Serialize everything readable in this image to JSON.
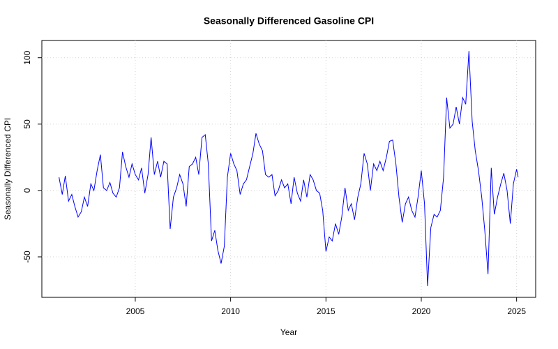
{
  "chart_data": {
    "type": "line",
    "title": "Seasonally Differenced Gasoline CPI",
    "x_label": "Year",
    "y_label": "Seasonally Differenced CPI",
    "xlim": [
      2000.1,
      2026
    ],
    "ylim": [
      -80.5,
      113
    ],
    "xticks": [
      2005,
      2010,
      2015,
      2020,
      2025
    ],
    "yticks": [
      -50,
      0,
      50,
      100
    ],
    "grid": true,
    "series": [
      {
        "color": "#0000ff",
        "x": [
          2001,
          2001.17,
          2001.33,
          2001.5,
          2001.67,
          2001.83,
          2002,
          2002.17,
          2002.33,
          2002.5,
          2002.67,
          2002.83,
          2003,
          2003.17,
          2003.33,
          2003.5,
          2003.67,
          2003.83,
          2004,
          2004.17,
          2004.33,
          2004.5,
          2004.67,
          2004.83,
          2005,
          2005.17,
          2005.33,
          2005.5,
          2005.67,
          2005.83,
          2006,
          2006.17,
          2006.33,
          2006.5,
          2006.67,
          2006.83,
          2007,
          2007.17,
          2007.33,
          2007.5,
          2007.67,
          2007.83,
          2008,
          2008.17,
          2008.33,
          2008.5,
          2008.67,
          2008.83,
          2009,
          2009.17,
          2009.33,
          2009.5,
          2009.67,
          2009.83,
          2010,
          2010.17,
          2010.33,
          2010.5,
          2010.67,
          2010.83,
          2011,
          2011.17,
          2011.33,
          2011.5,
          2011.67,
          2011.83,
          2012,
          2012.17,
          2012.33,
          2012.5,
          2012.67,
          2012.83,
          2013,
          2013.17,
          2013.33,
          2013.5,
          2013.67,
          2013.83,
          2014,
          2014.17,
          2014.33,
          2014.5,
          2014.67,
          2014.83,
          2015,
          2015.17,
          2015.33,
          2015.5,
          2015.67,
          2015.83,
          2016,
          2016.17,
          2016.33,
          2016.5,
          2016.67,
          2016.83,
          2017,
          2017.17,
          2017.33,
          2017.5,
          2017.67,
          2017.83,
          2018,
          2018.17,
          2018.33,
          2018.5,
          2018.67,
          2018.83,
          2019,
          2019.17,
          2019.33,
          2019.5,
          2019.67,
          2019.83,
          2020,
          2020.17,
          2020.33,
          2020.5,
          2020.67,
          2020.83,
          2021,
          2021.17,
          2021.33,
          2021.5,
          2021.67,
          2021.83,
          2022,
          2022.17,
          2022.33,
          2022.5,
          2022.67,
          2022.83,
          2023,
          2023.17,
          2023.33,
          2023.5,
          2023.67,
          2023.83,
          2024,
          2024.17,
          2024.33,
          2024.5,
          2024.67,
          2024.83,
          2025,
          2025.08
        ],
        "values": [
          10,
          -3,
          11,
          -8,
          -3,
          -12,
          -20,
          -16,
          -5,
          -12,
          5,
          0,
          15,
          27,
          2,
          0,
          6,
          -2,
          -5,
          2,
          29,
          18,
          10,
          20,
          12,
          8,
          17,
          -2,
          12,
          40,
          12,
          22,
          10,
          22,
          20,
          -29,
          -5,
          2,
          12,
          5,
          -12,
          18,
          20,
          25,
          12,
          40,
          42,
          20,
          -38,
          -30,
          -45,
          -55,
          -42,
          10,
          28,
          20,
          15,
          -3,
          5,
          8,
          18,
          28,
          43,
          35,
          30,
          12,
          10,
          12,
          -4,
          0,
          8,
          2,
          5,
          -10,
          10,
          -2,
          -8,
          8,
          -5,
          12,
          8,
          0,
          -2,
          -15,
          -46,
          -35,
          -38,
          -25,
          -33,
          -20,
          2,
          -15,
          -10,
          -22,
          -5,
          5,
          28,
          20,
          0,
          20,
          15,
          22,
          15,
          25,
          37,
          38,
          20,
          -5,
          -24,
          -10,
          -5,
          -15,
          -20,
          -5,
          15,
          -10,
          -72,
          -28,
          -18,
          -20,
          -15,
          10,
          70,
          47,
          50,
          63,
          50,
          70,
          65,
          105,
          52,
          30,
          15,
          -5,
          -30,
          -63,
          17,
          -18,
          -5,
          5,
          13,
          0,
          -25,
          5,
          16,
          10
        ]
      }
    ]
  }
}
